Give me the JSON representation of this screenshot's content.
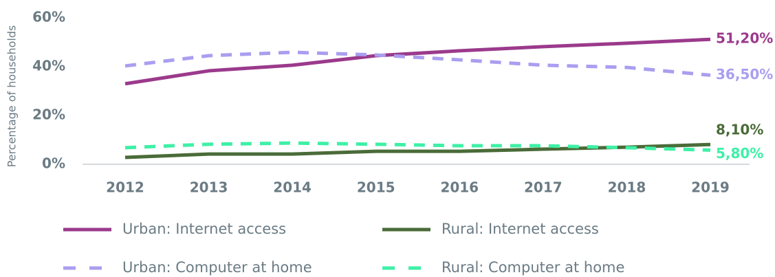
{
  "chart_data": {
    "type": "line",
    "y_axis_label": "Percentage of households",
    "categories": [
      "2012",
      "2013",
      "2014",
      "2015",
      "2016",
      "2017",
      "2018",
      "2019"
    ],
    "series": [
      {
        "name": "Urban: Internet access",
        "color": "#9b3a8c",
        "line_style": "solid",
        "values": [
          33,
          38.3,
          40.6,
          44.5,
          46.5,
          48.2,
          49.6,
          51.2
        ],
        "value_labels": [
          null,
          null,
          null,
          null,
          null,
          null,
          null,
          "51,20%"
        ]
      },
      {
        "name": "Rural: Internet access",
        "color": "#4a6b38",
        "line_style": "solid",
        "values": [
          2.8,
          4.2,
          4.2,
          5.3,
          5.3,
          6.2,
          7,
          8.1
        ],
        "value_labels": [
          null,
          null,
          null,
          null,
          null,
          null,
          null,
          "8,10%"
        ]
      },
      {
        "name": "Urban: Computer at home",
        "color": "#a99ef0",
        "line_style": "dashed",
        "values": [
          40.3,
          44.5,
          45.9,
          44.8,
          42.8,
          40.6,
          39.7,
          36.5
        ],
        "value_labels": [
          null,
          null,
          null,
          null,
          null,
          null,
          null,
          "36,50%"
        ]
      },
      {
        "name": "Rural: Computer at home",
        "color": "#3ef0a6",
        "line_style": "dashed",
        "values": [
          6.8,
          8.2,
          8.7,
          8.2,
          7.6,
          7.6,
          6.8,
          5.8
        ],
        "value_labels": [
          null,
          null,
          null,
          null,
          null,
          null,
          null,
          "5,80%"
        ]
      }
    ],
    "ylim": [
      0,
      60
    ],
    "yticks": [
      {
        "value": 0,
        "label": "0%"
      },
      {
        "value": 20,
        "label": "20%"
      },
      {
        "value": 40,
        "label": "40%"
      },
      {
        "value": 60,
        "label": "60%"
      }
    ],
    "grid": false,
    "legend": "bottom"
  }
}
